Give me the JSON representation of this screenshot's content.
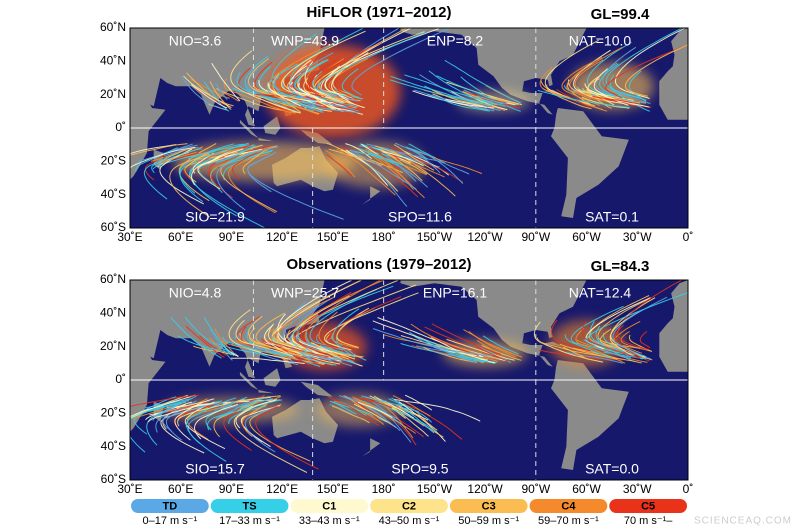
{
  "panels": [
    {
      "title": "HiFLOR (1971–2012)",
      "global": "GL=99.4",
      "regions": [
        "NIO=3.6",
        "WNP=43.9",
        "ENP=8.2",
        "NAT=10.0",
        "SIO=21.9",
        "SPO=11.6",
        "SAT=0.1"
      ]
    },
    {
      "title": "Observations (1979–2012)",
      "global": "GL=84.3",
      "regions": [
        "NIO=4.8",
        "WNP=25.7",
        "ENP=16.1",
        "NAT=12.4",
        "SIO=15.7",
        "SPO=9.5",
        "SAT=0.0"
      ]
    }
  ],
  "axes": {
    "lat": [
      "60˚N",
      "40˚N",
      "20˚N",
      "0˚",
      "20˚S",
      "40˚S",
      "60˚S"
    ],
    "lon": [
      "30˚E",
      "60˚E",
      "90˚E",
      "120˚E",
      "150˚E",
      "180˚",
      "150˚W",
      "120˚W",
      "90˚W",
      "60˚W",
      "30˚W",
      "0˚"
    ]
  },
  "legend": [
    {
      "category": "TD",
      "range": "0–17 m s⁻¹",
      "color": "#5aa9e6"
    },
    {
      "category": "TS",
      "range": "17–33 m s⁻¹",
      "color": "#36cfe8"
    },
    {
      "category": "C1",
      "range": "33–43 m s⁻¹",
      "color": "#fff9cf"
    },
    {
      "category": "C2",
      "range": "43–50 m s⁻¹",
      "color": "#fde38a"
    },
    {
      "category": "C3",
      "range": "50–59 m s⁻¹",
      "color": "#fbbd52"
    },
    {
      "category": "C4",
      "range": "59–70 m s⁻¹",
      "color": "#f58a2c"
    },
    {
      "category": "C5",
      "range": "70 m s⁻¹–",
      "color": "#e8321a"
    }
  ],
  "watermark": "SCIENCEAQ.COM"
}
